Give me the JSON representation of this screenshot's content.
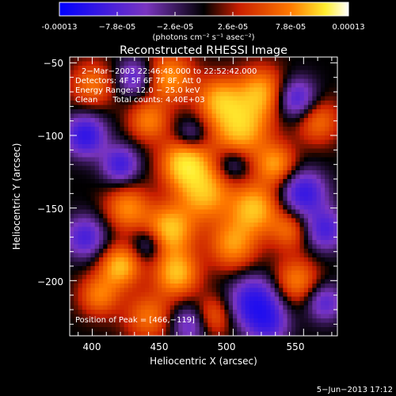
{
  "colorbar": {
    "ticks": [
      "-0.00013",
      "−7.8e-05",
      "−2.6e-05",
      "2.6e-05",
      "7.8e-05",
      "0.00013"
    ],
    "unit_label": "(photons cm⁻² s⁻¹ asec⁻²)"
  },
  "chart_data": {
    "type": "heatmap",
    "title": "Reconstructed RHESSI Image",
    "xlabel": "Heliocentric X (arcsec)",
    "ylabel": "Heliocentric Y (arcsec)",
    "xlim": [
      384,
      574
    ],
    "ylim": [
      -238,
      -46
    ],
    "x_ticks": [
      400,
      450,
      500,
      550
    ],
    "y_ticks": [
      -50,
      -100,
      -150,
      -200
    ],
    "x_tick_labels": [
      "400",
      "450",
      "500",
      "550"
    ],
    "y_tick_labels": [
      "−50",
      "−100",
      "−150",
      "−200"
    ],
    "color_range": [
      -0.00013,
      0.00013
    ],
    "colormap": [
      "#0000ff",
      "#7a35c0",
      "#000000",
      "#c81e00",
      "#ff7a00",
      "#ffee30",
      "#ffffff"
    ],
    "annotations": [
      "2−Mar−2003 22:46:48.000 to 22:52:42.000",
      "Detectors: 4F 5F 6F 7F 8F, Att 0",
      "Energy Range: 12.0 − 25.0 keV",
      "Clean      Total counts: 4.40E+03"
    ],
    "peak_label": "Position of Peak = [466,−119]",
    "peak": [
      466,
      -119
    ],
    "blobs": [
      [
        466,
        -119,
        1.0,
        12
      ],
      [
        505,
        -95,
        0.9,
        14
      ],
      [
        520,
        -70,
        0.75,
        12
      ],
      [
        490,
        -75,
        0.7,
        11
      ],
      [
        455,
        -60,
        0.7,
        12
      ],
      [
        440,
        -90,
        0.6,
        10
      ],
      [
        480,
        -140,
        0.8,
        13
      ],
      [
        455,
        -165,
        0.9,
        12
      ],
      [
        425,
        -150,
        0.65,
        11
      ],
      [
        515,
        -150,
        0.85,
        12
      ],
      [
        530,
        -120,
        0.7,
        10
      ],
      [
        500,
        -175,
        0.7,
        12
      ],
      [
        460,
        -195,
        0.85,
        11
      ],
      [
        420,
        -190,
        0.85,
        10
      ],
      [
        545,
        -200,
        0.6,
        11
      ],
      [
        400,
        -65,
        0.55,
        11
      ],
      [
        560,
        -90,
        0.55,
        11
      ],
      [
        440,
        -225,
        0.55,
        12
      ],
      [
        485,
        -225,
        0.55,
        10
      ],
      [
        540,
        -165,
        0.5,
        10
      ],
      [
        405,
        -210,
        0.6,
        10
      ],
      [
        395,
        -100,
        -0.9,
        10
      ],
      [
        420,
        -120,
        -0.75,
        9
      ],
      [
        470,
        -230,
        -0.6,
        10
      ],
      [
        550,
        -140,
        -0.85,
        11
      ],
      [
        565,
        -165,
        -0.7,
        10
      ],
      [
        515,
        -215,
        -0.95,
        12
      ],
      [
        545,
        -75,
        -0.75,
        10
      ],
      [
        430,
        -60,
        -0.6,
        9
      ],
      [
        395,
        -170,
        -0.7,
        10
      ],
      [
        525,
        -230,
        -0.6,
        10
      ],
      [
        565,
        -215,
        -0.6,
        9
      ],
      [
        470,
        -100,
        -0.45,
        8
      ],
      [
        440,
        -175,
        -0.45,
        8
      ],
      [
        500,
        -120,
        -0.4,
        8
      ]
    ]
  },
  "footer": {
    "date": "5−Jun−2013 17:12"
  }
}
